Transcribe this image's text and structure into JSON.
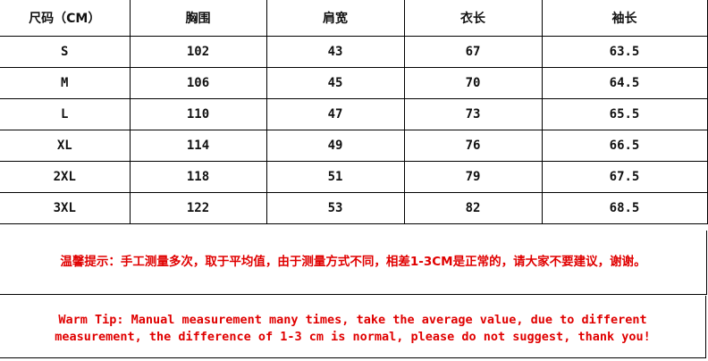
{
  "table": {
    "headers": [
      "尺码（CM）",
      "胸围",
      "肩宽",
      "衣长",
      "袖长"
    ],
    "rows": [
      [
        "S",
        "102",
        "43",
        "67",
        "63.5"
      ],
      [
        "M",
        "106",
        "45",
        "70",
        "64.5"
      ],
      [
        "L",
        "110",
        "47",
        "73",
        "65.5"
      ],
      [
        "XL",
        "114",
        "49",
        "76",
        "66.5"
      ],
      [
        "2XL",
        "118",
        "51",
        "79",
        "67.5"
      ],
      [
        "3XL",
        "122",
        "53",
        "82",
        "68.5"
      ]
    ]
  },
  "notes": {
    "chinese": "温馨提示：手工测量多次，取于平均值，由于测量方式不同，相差1-3CM是正常的，请大家不要建议，谢谢。",
    "english_line1": "Warm Tip: Manual measurement many times, take the average value, due to different",
    "english_line2": "measurement, the difference of 1-3 cm is normal, please do not suggest, thank you!"
  },
  "colors": {
    "note_text": "#e00000",
    "border": "#000000"
  }
}
